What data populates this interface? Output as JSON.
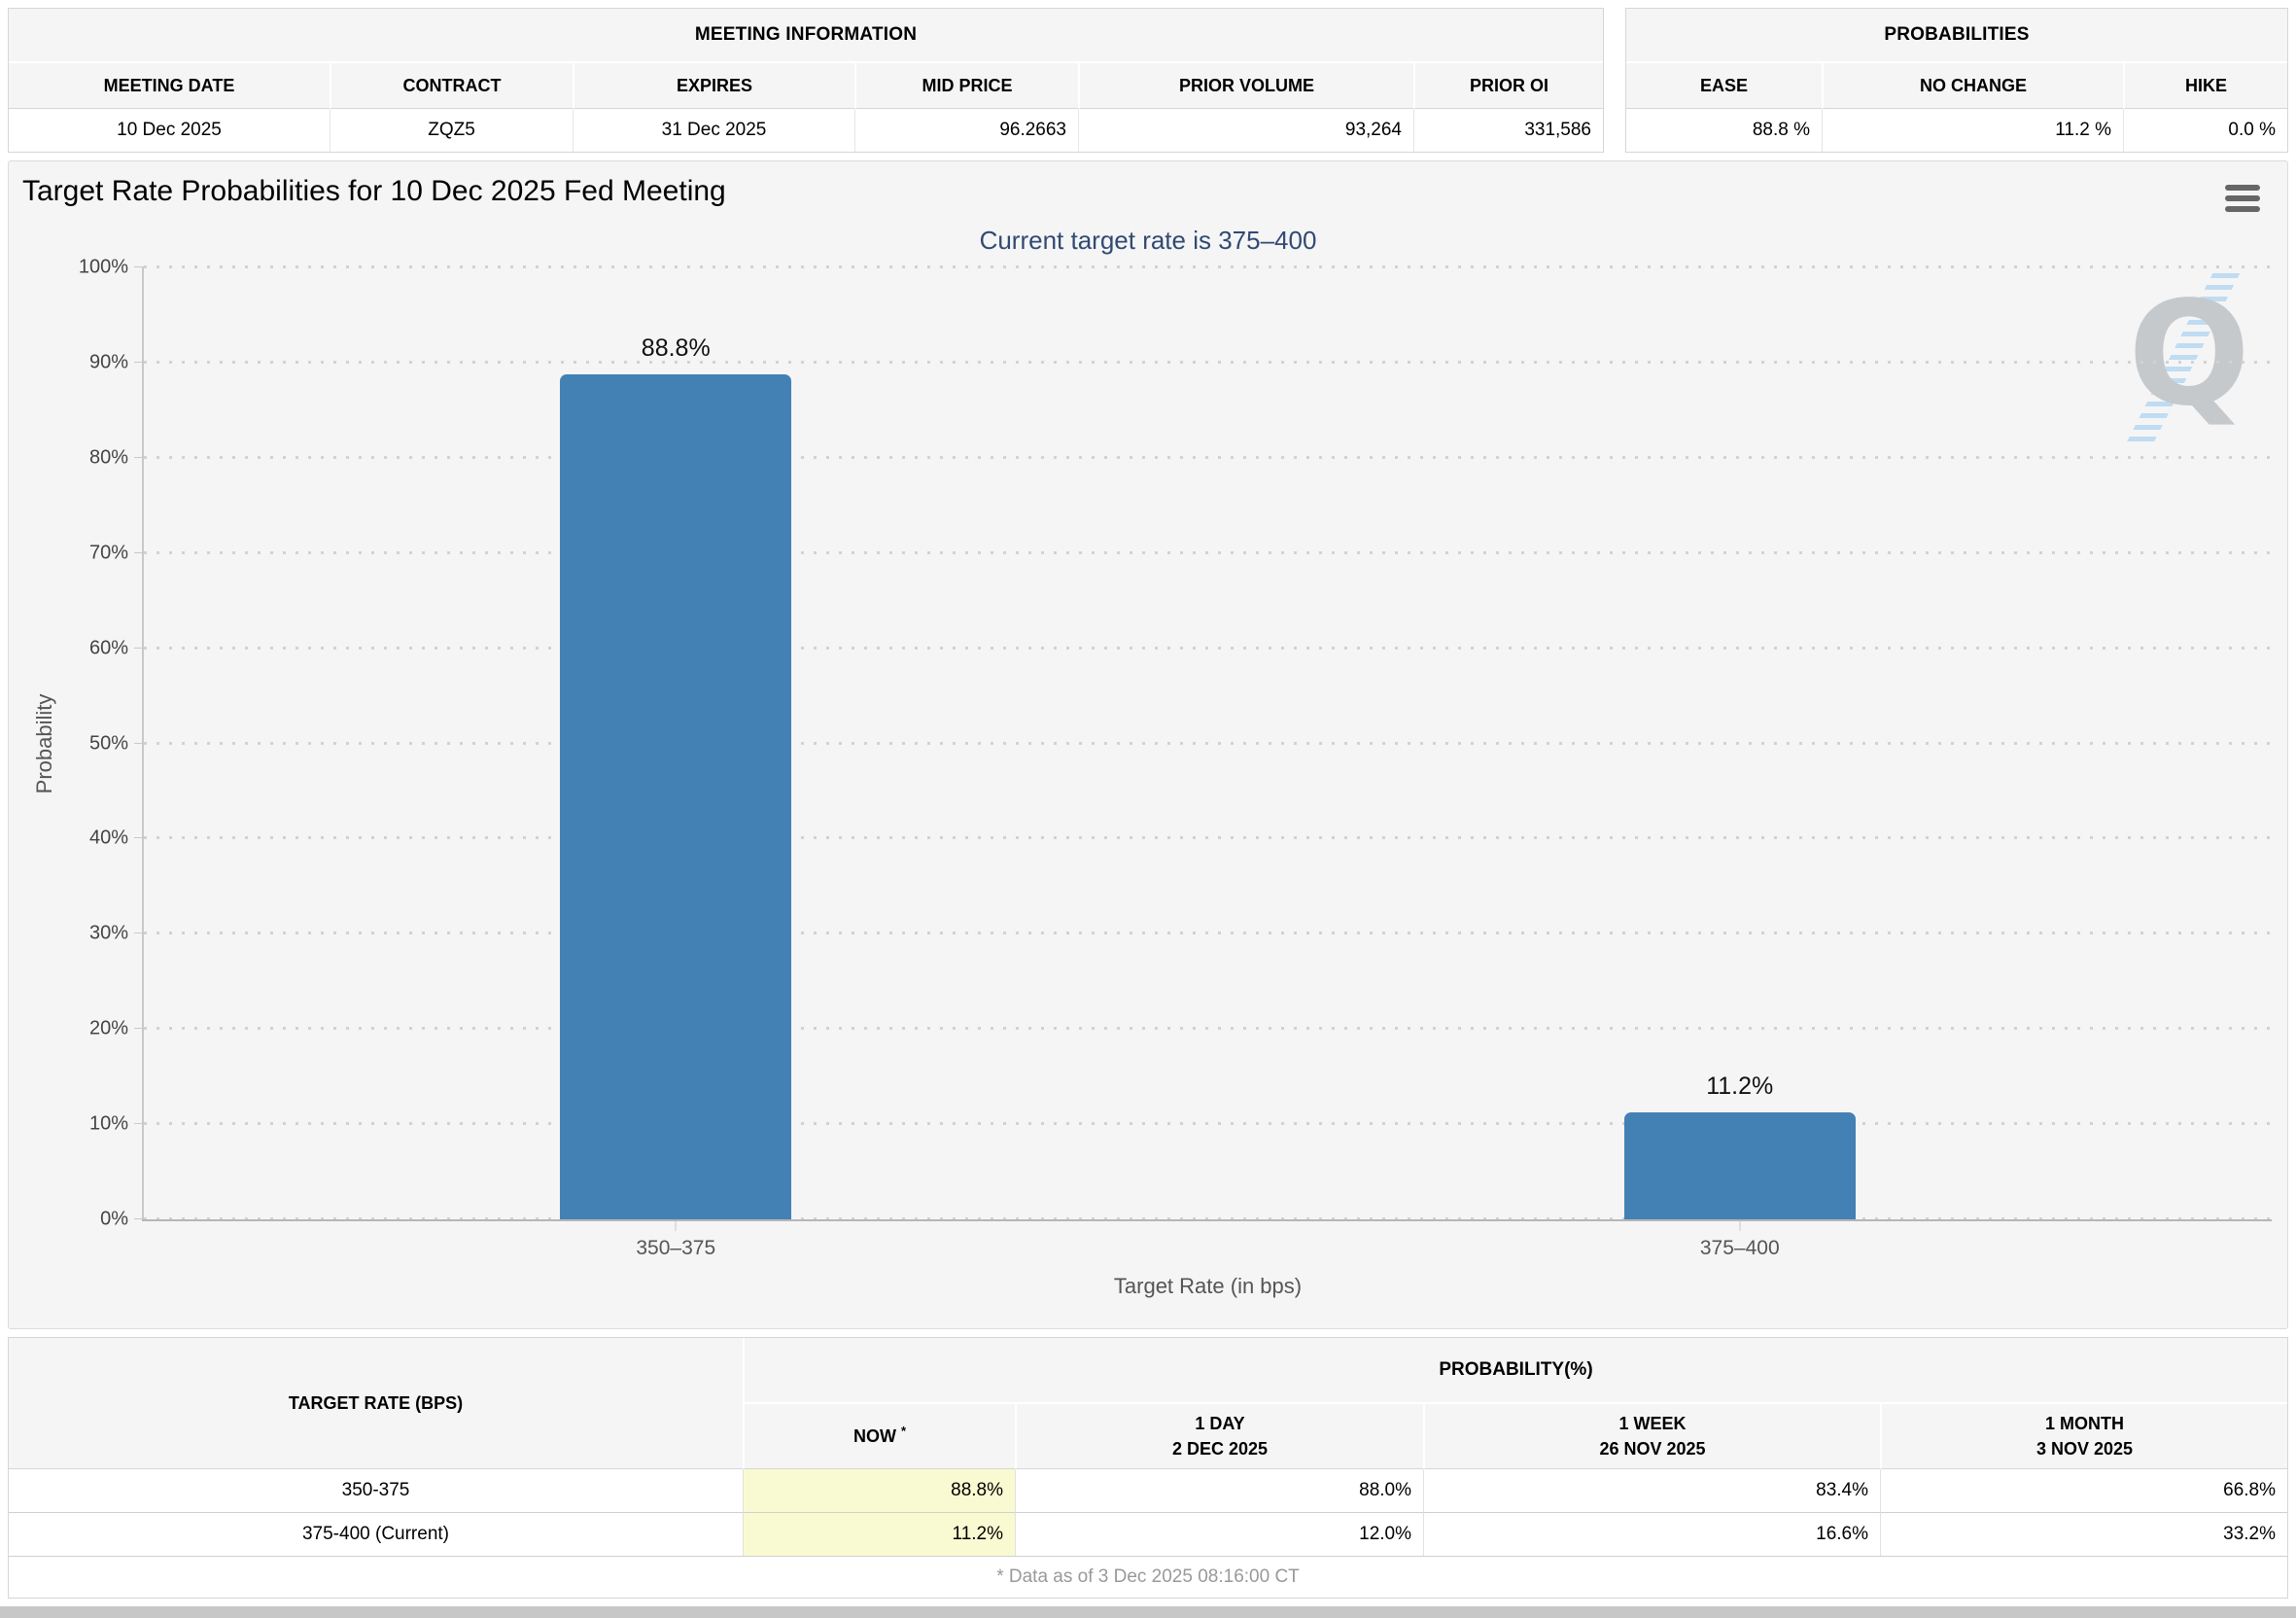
{
  "meeting_info": {
    "title": "MEETING INFORMATION",
    "columns": [
      "MEETING DATE",
      "CONTRACT",
      "EXPIRES",
      "MID PRICE",
      "PRIOR VOLUME",
      "PRIOR OI"
    ],
    "row": [
      "10 Dec 2025",
      "ZQZ5",
      "31 Dec 2025",
      "96.2663",
      "93,264",
      "331,586"
    ]
  },
  "probabilities": {
    "title": "PROBABILITIES",
    "columns": [
      "EASE",
      "NO CHANGE",
      "HIKE"
    ],
    "row": [
      "88.8 %",
      "11.2 %",
      "0.0 %"
    ]
  },
  "chart_data": {
    "type": "bar",
    "title": "Target Rate Probabilities for 10 Dec 2025 Fed Meeting",
    "subtitle": "Current target rate is 375–400",
    "categories": [
      "350–375",
      "375–400"
    ],
    "values": [
      88.8,
      11.2
    ],
    "value_labels": [
      "88.8%",
      "11.2%"
    ],
    "xlabel": "Target Rate (in bps)",
    "ylabel": "Probability",
    "ylim": [
      0,
      100
    ],
    "ytick_step": 10,
    "grid": "horizontal-dotted",
    "legend": "none",
    "bar_color": "#4381b5",
    "subtitle_color": "#314a72",
    "now_highlight_color": "#fafad2",
    "menu_icon": "hamburger-icon",
    "watermark_letter": "Q"
  },
  "bottom_table": {
    "corner_header": "TARGET RATE (BPS)",
    "group_header": "PROBABILITY(%)",
    "col_now": {
      "label": "NOW",
      "sup": "*"
    },
    "col_1day": {
      "label": "1 DAY",
      "date": "2 DEC 2025"
    },
    "col_1week": {
      "label": "1 WEEK",
      "date": "26 NOV 2025"
    },
    "col_1month": {
      "label": "1 MONTH",
      "date": "3 NOV 2025"
    },
    "rows": [
      {
        "rate": "350-375",
        "now": "88.8%",
        "d1": "88.0%",
        "w1": "83.4%",
        "m1": "66.8%"
      },
      {
        "rate": "375-400 (Current)",
        "now": "11.2%",
        "d1": "12.0%",
        "w1": "16.6%",
        "m1": "33.2%"
      }
    ],
    "footnote": "* Data as of 3 Dec 2025 08:16:00 CT"
  }
}
